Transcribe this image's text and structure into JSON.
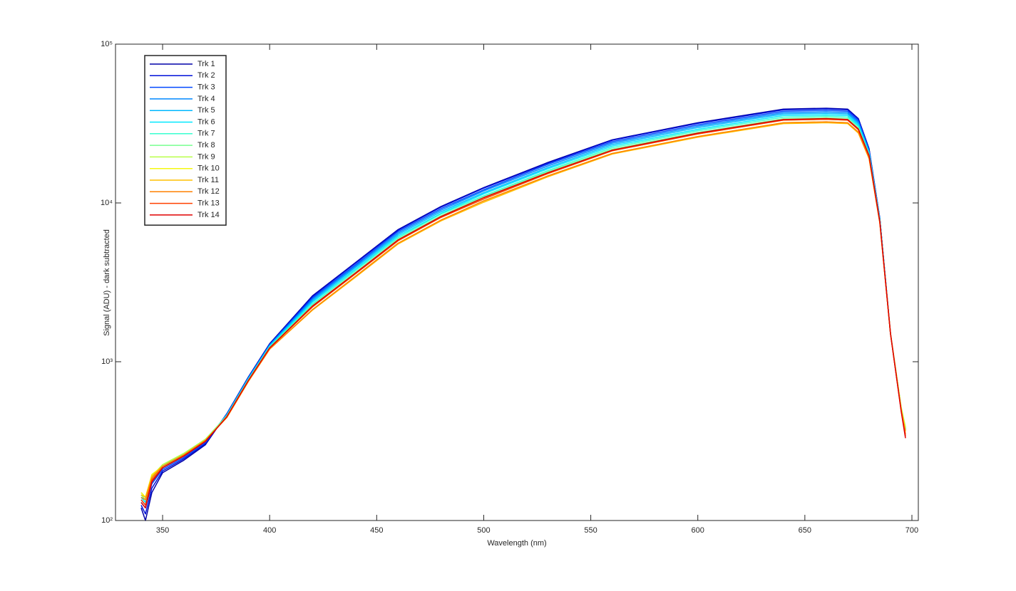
{
  "chart_data": {
    "type": "line",
    "xlabel": "Wavelength (nm)",
    "ylabel": "Signal (ADU) - dark subtracted",
    "yscale": "log",
    "legend": "northwest",
    "grid": false,
    "xlim": [
      328,
      703
    ],
    "ylim": [
      100,
      100000
    ],
    "xticks": [
      350,
      400,
      450,
      500,
      550,
      600,
      650,
      700
    ],
    "yticks": [
      {
        "value": 100,
        "label": "10²"
      },
      {
        "value": 1000,
        "label": "10³"
      },
      {
        "value": 10000,
        "label": "10⁴"
      },
      {
        "value": 100000,
        "label": "10⁵"
      }
    ],
    "x": [
      340,
      342,
      345,
      350,
      360,
      370,
      380,
      390,
      400,
      420,
      440,
      460,
      480,
      500,
      530,
      560,
      600,
      640,
      660,
      670,
      675,
      680,
      685,
      690,
      695,
      697
    ],
    "series": [
      {
        "name": "Trk 1",
        "color": "#0000a8",
        "values": [
          120,
          100,
          150,
          200,
          240,
          300,
          470,
          800,
          1300,
          2600,
          4200,
          6800,
          9500,
          12500,
          18000,
          25000,
          32000,
          39000,
          39500,
          39000,
          34000,
          22000,
          8000,
          1500,
          500,
          380
        ]
      },
      {
        "name": "Trk 2",
        "color": "#0010d8",
        "values": [
          125,
          110,
          160,
          205,
          245,
          305,
          470,
          795,
          1290,
          2570,
          4160,
          6730,
          9400,
          12400,
          17800,
          24800,
          31700,
          38600,
          39100,
          38600,
          33700,
          21800,
          8000,
          1500,
          500,
          375
        ]
      },
      {
        "name": "Trk 3",
        "color": "#0048ff",
        "values": [
          130,
          120,
          170,
          210,
          250,
          310,
          465,
          790,
          1280,
          2520,
          4070,
          6600,
          9200,
          12100,
          17500,
          24300,
          31000,
          37800,
          38300,
          37800,
          33000,
          21500,
          7900,
          1500,
          500,
          370
        ]
      },
      {
        "name": "Trk 4",
        "color": "#0088ff",
        "values": [
          135,
          125,
          175,
          215,
          255,
          315,
          465,
          785,
          1270,
          2470,
          3990,
          6460,
          9000,
          11900,
          17100,
          23800,
          30400,
          37000,
          37500,
          37000,
          32300,
          21200,
          7900,
          1500,
          505,
          370
        ]
      },
      {
        "name": "Trk 5",
        "color": "#00b8ff",
        "values": [
          140,
          130,
          180,
          215,
          260,
          320,
          460,
          780,
          1260,
          2420,
          3910,
          6320,
          8800,
          11600,
          16700,
          23300,
          29800,
          36300,
          36700,
          36300,
          31600,
          20900,
          7800,
          1500,
          505,
          375
        ]
      },
      {
        "name": "Trk 6",
        "color": "#00e8ff",
        "values": [
          140,
          130,
          185,
          220,
          260,
          320,
          460,
          775,
          1250,
          2370,
          3820,
          6190,
          8600,
          11400,
          16400,
          22800,
          29100,
          35500,
          35900,
          35500,
          30900,
          20600,
          7800,
          1500,
          510,
          380
        ]
      },
      {
        "name": "Trk 7",
        "color": "#38ffd0",
        "values": [
          145,
          135,
          185,
          220,
          265,
          325,
          455,
          770,
          1240,
          2310,
          3740,
          6050,
          8500,
          11100,
          16000,
          22300,
          28500,
          34700,
          35200,
          34700,
          30300,
          20300,
          7700,
          1500,
          510,
          380
        ]
      },
      {
        "name": "Trk 8",
        "color": "#78ff90",
        "values": [
          145,
          135,
          190,
          225,
          265,
          325,
          455,
          765,
          1230,
          2260,
          3650,
          5920,
          8300,
          10900,
          15700,
          21800,
          27800,
          33900,
          34400,
          33900,
          29600,
          20000,
          7700,
          1500,
          515,
          385
        ]
      },
      {
        "name": "Trk 9",
        "color": "#b8ff48",
        "values": [
          150,
          140,
          190,
          225,
          265,
          325,
          450,
          760,
          1220,
          2210,
          3570,
          5780,
          8100,
          10600,
          15300,
          21300,
          27200,
          33200,
          33600,
          33200,
          28900,
          19700,
          7600,
          1500,
          515,
          385
        ]
      },
      {
        "name": "Trk 10",
        "color": "#f4f810",
        "values": [
          150,
          140,
          195,
          220,
          260,
          320,
          445,
          750,
          1200,
          2130,
          3440,
          5580,
          7800,
          10300,
          14800,
          20500,
          26200,
          32000,
          32400,
          32000,
          27900,
          19200,
          7500,
          1500,
          505,
          370
        ]
      },
      {
        "name": "Trk 11",
        "color": "#ffc000",
        "values": [
          145,
          140,
          190,
          220,
          260,
          320,
          445,
          750,
          1200,
          2110,
          3400,
          5510,
          7700,
          10100,
          14600,
          20300,
          25900,
          31600,
          32000,
          31600,
          27500,
          19000,
          7500,
          1500,
          500,
          365
        ]
      },
      {
        "name": "Trk 12",
        "color": "#ff8000",
        "values": [
          140,
          135,
          185,
          220,
          260,
          320,
          445,
          750,
          1200,
          2130,
          3440,
          5580,
          7800,
          10300,
          14800,
          20500,
          26200,
          32000,
          32400,
          32000,
          27900,
          19200,
          7500,
          1500,
          495,
          350
        ]
      },
      {
        "name": "Trk 13",
        "color": "#ff4000",
        "values": [
          135,
          125,
          180,
          215,
          255,
          315,
          450,
          760,
          1220,
          2210,
          3570,
          5780,
          8100,
          10600,
          15300,
          21300,
          27200,
          33200,
          33600,
          33200,
          28900,
          19700,
          7600,
          1500,
          490,
          340
        ]
      },
      {
        "name": "Trk 14",
        "color": "#e00000",
        "values": [
          130,
          120,
          175,
          215,
          255,
          315,
          450,
          760,
          1220,
          2240,
          3610,
          5850,
          8200,
          10800,
          15500,
          21500,
          27500,
          33500,
          34000,
          33500,
          29200,
          19900,
          7600,
          1500,
          485,
          330
        ]
      }
    ]
  }
}
